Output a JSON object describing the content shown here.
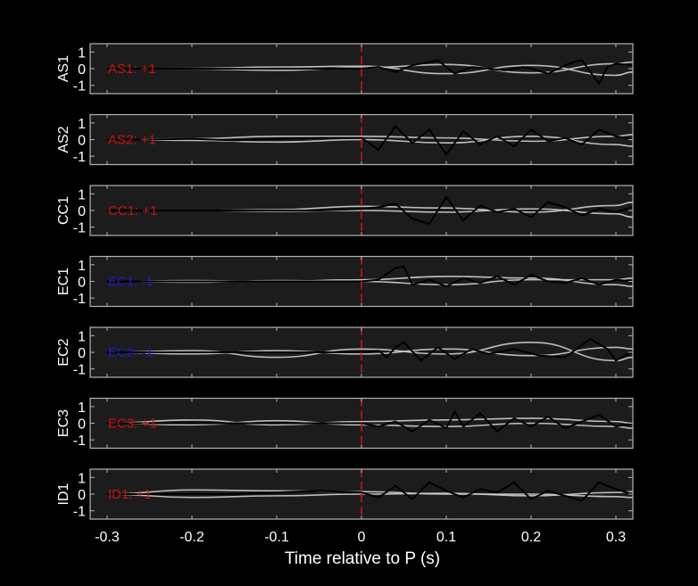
{
  "chart_data": {
    "type": "line",
    "xlabel": "Time relative to P (s)",
    "xlim": [
      -0.32,
      0.32
    ],
    "xticks": [
      -0.3,
      -0.2,
      -0.1,
      0,
      0.1,
      0.2,
      0.3
    ],
    "xtick_labels": [
      "-0.3",
      "-0.2",
      "-0.1",
      "0",
      "0.1",
      "0.2",
      "0.3"
    ],
    "ylim": [
      -1.5,
      1.5
    ],
    "yticks": [
      1,
      0,
      -1
    ],
    "ytick_labels": [
      "1",
      "0",
      "-1"
    ],
    "grid": false,
    "marker_line": {
      "x": 0,
      "color": "#d01010",
      "style": "dashed"
    },
    "colors": {
      "background": "#000000",
      "panel": "#1c1c1c",
      "frame": "#b4b4b4",
      "text": "#ffffff",
      "gray_trace": "#cfcfcf",
      "black_trace": "#000000",
      "positive_annotation": "#cc1111",
      "negative_annotation": "#1a1acc"
    },
    "panels": [
      {
        "station": "AS1",
        "annotation": "AS1: +1",
        "polarity": 1,
        "black_trace": {
          "x": [
            -0.3,
            -0.25,
            -0.2,
            -0.15,
            -0.1,
            -0.05,
            0,
            0.02,
            0.04,
            0.06,
            0.08,
            0.09,
            0.11,
            0.13,
            0.15,
            0.17,
            0.19,
            0.2,
            0.22,
            0.24,
            0.25,
            0.26,
            0.27,
            0.28,
            0.29,
            0.3,
            0.32
          ],
          "y": [
            0,
            0,
            0,
            0,
            0,
            0,
            0,
            0.1,
            -0.2,
            0.2,
            0.4,
            0.5,
            -0.3,
            0.1,
            0.0,
            -0.1,
            0.1,
            0.0,
            -0.3,
            0.2,
            0.4,
            0.5,
            -0.2,
            -0.9,
            0.1,
            0.3,
            0.2
          ]
        },
        "gray_traces": [
          {
            "x": [
              -0.3,
              -0.2,
              -0.1,
              0,
              0.1,
              0.2,
              0.3,
              0.32
            ],
            "y": [
              0,
              0.02,
              0.1,
              0.15,
              -0.3,
              0.2,
              -0.4,
              -0.2
            ]
          },
          {
            "x": [
              -0.3,
              -0.2,
              -0.1,
              0,
              0.1,
              0.2,
              0.3,
              0.32
            ],
            "y": [
              0,
              -0.02,
              -0.1,
              0.05,
              0.25,
              -0.25,
              0.3,
              0.4
            ]
          }
        ]
      },
      {
        "station": "AS2",
        "annotation": "AS2: +1",
        "polarity": 1,
        "black_trace": {
          "x": [
            -0.3,
            -0.25,
            -0.2,
            -0.15,
            -0.1,
            -0.05,
            0,
            0.02,
            0.04,
            0.06,
            0.08,
            0.1,
            0.12,
            0.14,
            0.16,
            0.18,
            0.2,
            0.22,
            0.24,
            0.26,
            0.28,
            0.3,
            0.32
          ],
          "y": [
            0,
            0,
            0.05,
            -0.05,
            0.05,
            0.1,
            0.1,
            -0.6,
            0.8,
            -0.2,
            0.6,
            -0.9,
            0.5,
            -0.3,
            0.2,
            -0.4,
            0.6,
            -0.1,
            0.1,
            -0.3,
            0.6,
            0.2,
            0.0
          ]
        },
        "gray_traces": [
          {
            "x": [
              -0.3,
              -0.2,
              -0.1,
              0,
              0.1,
              0.2,
              0.3,
              0.32
            ],
            "y": [
              0,
              0.05,
              0.2,
              0.2,
              0.1,
              -0.1,
              0.2,
              0.3
            ]
          },
          {
            "x": [
              -0.3,
              -0.2,
              -0.1,
              0,
              0.1,
              0.2,
              0.3,
              0.32
            ],
            "y": [
              0,
              -0.05,
              -0.15,
              0.0,
              -0.2,
              0.2,
              -0.3,
              -0.4
            ]
          }
        ]
      },
      {
        "station": "CC1",
        "annotation": "CC1: +1",
        "polarity": 1,
        "black_trace": {
          "x": [
            -0.3,
            -0.25,
            -0.2,
            -0.15,
            -0.1,
            -0.05,
            0,
            0.02,
            0.04,
            0.06,
            0.08,
            0.1,
            0.12,
            0.14,
            0.16,
            0.18,
            0.2,
            0.22,
            0.24,
            0.26,
            0.28,
            0.3,
            0.32
          ],
          "y": [
            0,
            0,
            0,
            0,
            0,
            0,
            0.1,
            0.2,
            0.4,
            -0.5,
            -0.8,
            0.8,
            -0.6,
            0.3,
            -0.1,
            0.1,
            -0.4,
            0.5,
            0.2,
            -0.3,
            0.1,
            -0.1,
            0.2
          ]
        },
        "gray_traces": [
          {
            "x": [
              -0.3,
              -0.2,
              -0.1,
              0,
              0.1,
              0.2,
              0.3,
              0.32
            ],
            "y": [
              0,
              0.0,
              0.05,
              0.25,
              0.15,
              -0.1,
              0.3,
              0.5
            ]
          },
          {
            "x": [
              -0.3,
              -0.2,
              -0.1,
              0,
              0.1,
              0.2,
              0.3,
              0.32
            ],
            "y": [
              0,
              0.0,
              -0.05,
              0.0,
              -0.1,
              0.1,
              -0.2,
              -0.4
            ]
          }
        ]
      },
      {
        "station": "EC1",
        "annotation": "EC1: -1",
        "polarity": -1,
        "black_trace": {
          "x": [
            -0.3,
            -0.25,
            -0.2,
            -0.15,
            -0.1,
            -0.05,
            0,
            0.02,
            0.04,
            0.05,
            0.06,
            0.08,
            0.1,
            0.12,
            0.14,
            0.16,
            0.18,
            0.2,
            0.22,
            0.24,
            0.26,
            0.28,
            0.3,
            0.32
          ],
          "y": [
            0,
            0,
            0,
            0,
            0,
            0,
            0,
            0.1,
            0.8,
            0.9,
            -0.2,
            0.1,
            -0.3,
            0.2,
            -0.1,
            0.3,
            -0.2,
            0.4,
            0.0,
            -0.1,
            0.2,
            -0.2,
            0.1,
            0.0
          ]
        },
        "gray_traces": [
          {
            "x": [
              -0.3,
              -0.2,
              -0.1,
              0,
              0.1,
              0.2,
              0.3,
              0.32
            ],
            "y": [
              0,
              0.05,
              0.0,
              0.1,
              0.3,
              0.2,
              -0.2,
              -0.3
            ]
          },
          {
            "x": [
              -0.3,
              -0.2,
              -0.1,
              0,
              0.1,
              0.2,
              0.3,
              0.32
            ],
            "y": [
              0,
              -0.05,
              0.05,
              0.0,
              -0.2,
              0.1,
              0.1,
              0.2
            ]
          }
        ]
      },
      {
        "station": "EC2",
        "annotation": "EC2: -1",
        "polarity": -1,
        "black_trace": {
          "x": [
            -0.3,
            -0.25,
            -0.2,
            -0.15,
            -0.1,
            -0.05,
            0,
            0.02,
            0.03,
            0.04,
            0.05,
            0.07,
            0.09,
            0.11,
            0.13,
            0.15,
            0.18,
            0.21,
            0.24,
            0.27,
            0.29,
            0.3,
            0.31,
            0.32
          ],
          "y": [
            0,
            0,
            0,
            0,
            0,
            0,
            0,
            0.1,
            -0.3,
            0.3,
            0.6,
            -0.5,
            0.3,
            -0.4,
            0.2,
            -0.1,
            0.2,
            -0.2,
            -0.3,
            0.8,
            0.2,
            -0.5,
            -0.2,
            0.0
          ]
        },
        "gray_traces": [
          {
            "x": [
              -0.3,
              -0.2,
              -0.1,
              0,
              0.1,
              0.2,
              0.3,
              0.32
            ],
            "y": [
              0,
              0.1,
              -0.3,
              0.2,
              -0.1,
              0.6,
              -0.5,
              -0.3
            ]
          },
          {
            "x": [
              -0.3,
              -0.2,
              -0.1,
              0,
              0.1,
              0.2,
              0.3,
              0.32
            ],
            "y": [
              0,
              -0.1,
              0.1,
              -0.1,
              0.2,
              -0.2,
              0.3,
              0.2
            ]
          }
        ]
      },
      {
        "station": "EC3",
        "annotation": "EC3: +1",
        "polarity": 1,
        "black_trace": {
          "x": [
            -0.3,
            -0.25,
            -0.2,
            -0.15,
            -0.1,
            -0.05,
            0,
            0.02,
            0.04,
            0.06,
            0.08,
            0.1,
            0.11,
            0.12,
            0.14,
            0.16,
            0.18,
            0.2,
            0.22,
            0.24,
            0.26,
            0.28,
            0.3,
            0.32
          ],
          "y": [
            0,
            0,
            0,
            0,
            0,
            0,
            0,
            -0.2,
            0.1,
            -0.5,
            0.2,
            -0.3,
            0.7,
            -0.2,
            0.6,
            -0.5,
            0.3,
            -0.2,
            0.4,
            -0.3,
            0.1,
            0.5,
            -0.2,
            0.0
          ]
        },
        "gray_traces": [
          {
            "x": [
              -0.3,
              -0.2,
              -0.1,
              0,
              0.1,
              0.2,
              0.3,
              0.32
            ],
            "y": [
              0,
              0.2,
              -0.1,
              0.1,
              0.2,
              0.3,
              0.1,
              0.0
            ]
          },
          {
            "x": [
              -0.3,
              -0.2,
              -0.1,
              0,
              0.1,
              0.2,
              0.3,
              0.32
            ],
            "y": [
              0,
              -0.1,
              0.15,
              -0.1,
              -0.2,
              0.0,
              -0.2,
              -0.3
            ]
          }
        ]
      },
      {
        "station": "ID1",
        "annotation": "ID1: +1",
        "polarity": 1,
        "black_trace": {
          "x": [
            -0.3,
            -0.25,
            -0.2,
            -0.15,
            -0.1,
            -0.05,
            0,
            0.02,
            0.04,
            0.06,
            0.08,
            0.1,
            0.12,
            0.14,
            0.16,
            0.18,
            0.2,
            0.22,
            0.24,
            0.26,
            0.28,
            0.3,
            0.32
          ],
          "y": [
            0,
            0,
            0,
            0,
            0.1,
            0.2,
            0.1,
            -0.2,
            0.5,
            -0.3,
            0.7,
            0.2,
            -0.2,
            0.3,
            0.1,
            0.7,
            -0.3,
            0.2,
            -0.1,
            -0.4,
            0.7,
            0.3,
            0.0
          ]
        },
        "gray_traces": [
          {
            "x": [
              -0.3,
              -0.2,
              -0.1,
              0,
              0.1,
              0.2,
              0.3,
              0.32
            ],
            "y": [
              0,
              0.25,
              0.2,
              0.15,
              0.0,
              0.0,
              -0.15,
              -0.2
            ]
          },
          {
            "x": [
              -0.3,
              -0.2,
              -0.1,
              0,
              0.1,
              0.2,
              0.3,
              0.32
            ],
            "y": [
              0,
              -0.2,
              -0.1,
              0.0,
              0.05,
              -0.1,
              0.1,
              0.15
            ]
          }
        ]
      }
    ]
  }
}
